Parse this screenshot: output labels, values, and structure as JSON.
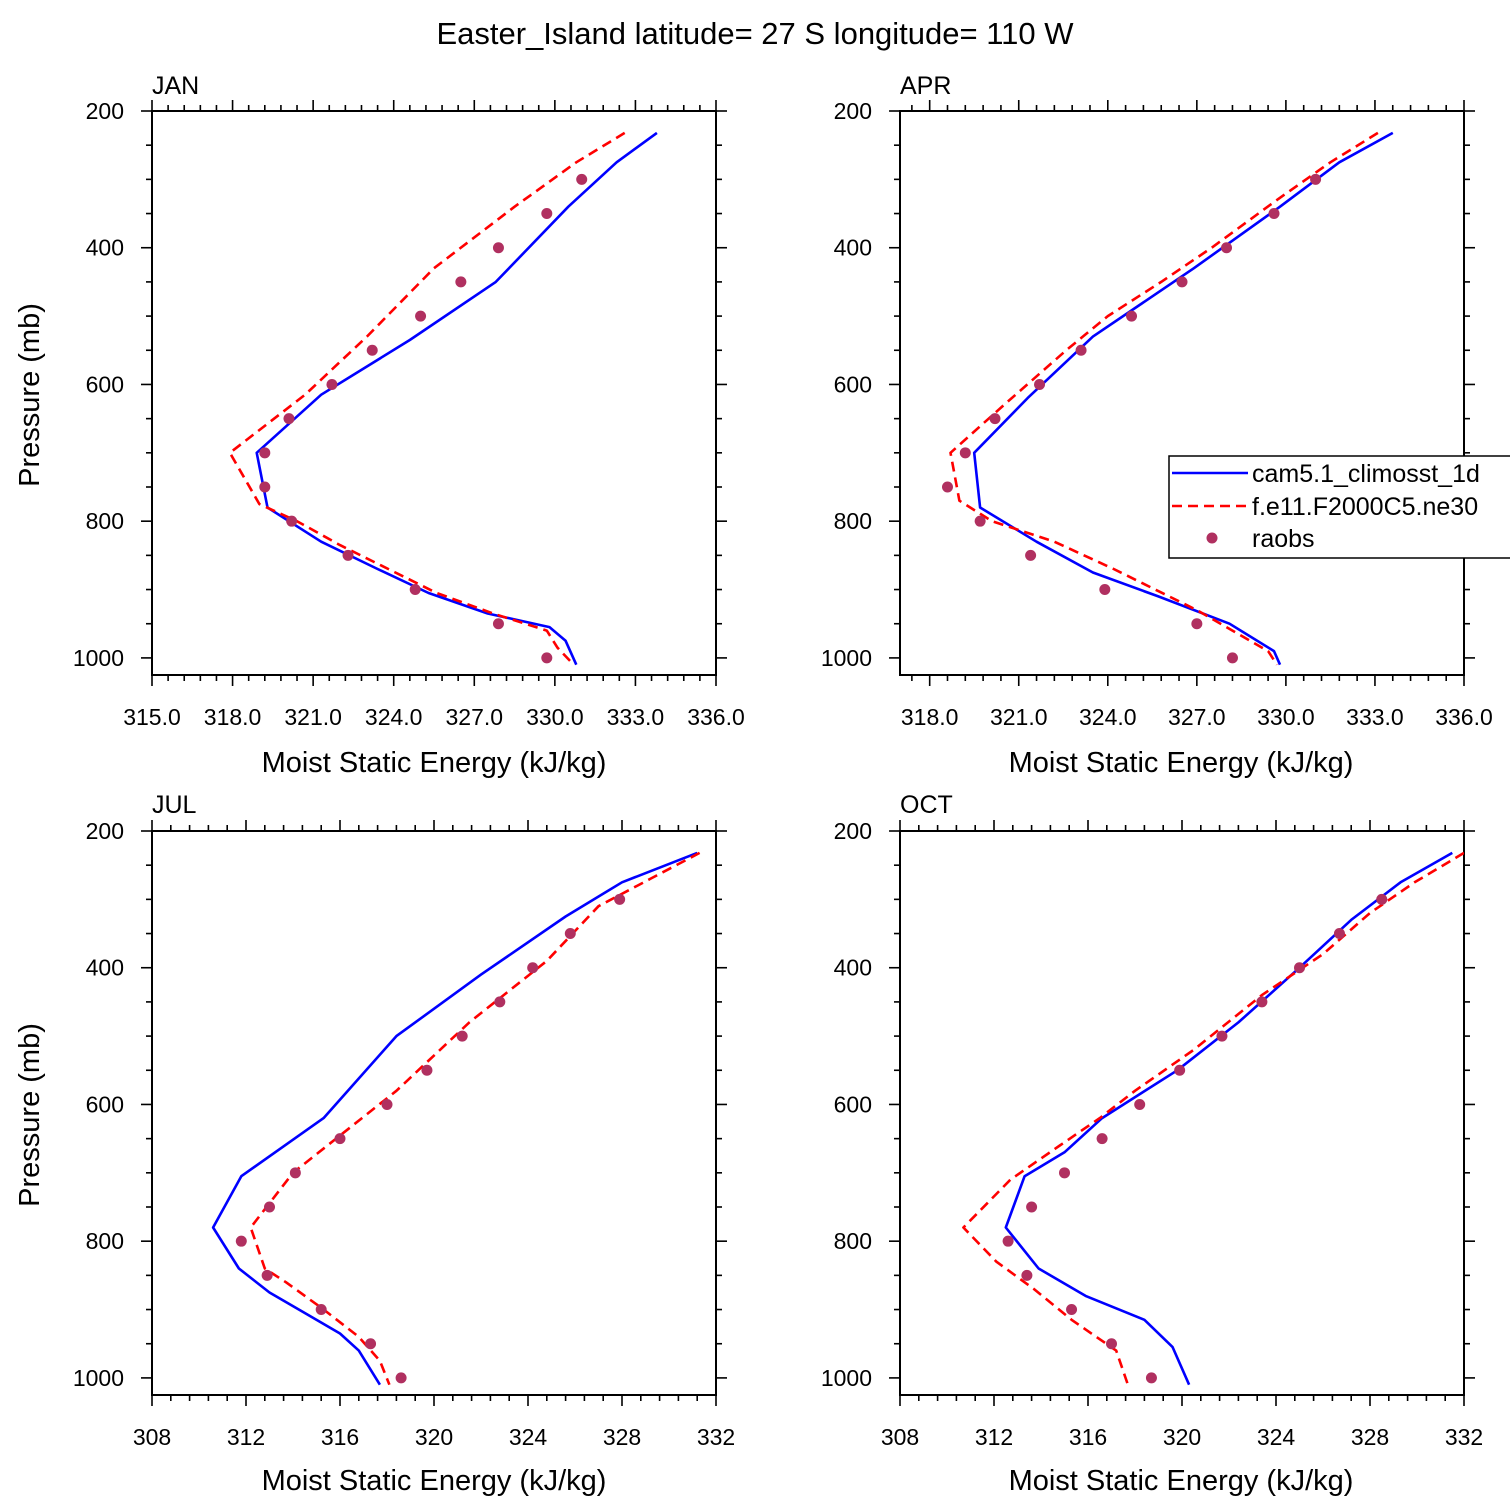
{
  "title": "Easter_Island  latitude= 27 S longitude= 110 W",
  "legend": {
    "entries": [
      "cam5.1_climosst_1d",
      "f.e11.F2000C5.ne30",
      "raobs"
    ],
    "colors": [
      "#0000ff",
      "#ff0000",
      "#b03060"
    ],
    "placement": "right, inside APR panel (clipped at figure edge)"
  },
  "chart_data": [
    {
      "type": "line",
      "panel_label": "JAN",
      "xlabel": "Moist Static Energy (kJ/kg)",
      "ylabel": "Pressure (mb)",
      "xlim": [
        315,
        336
      ],
      "ylim": [
        200,
        1025
      ],
      "y_inverted": true,
      "x_ticks": [
        315,
        318,
        321,
        324,
        327,
        330,
        333,
        336
      ],
      "x_tick_labels": [
        "315.0",
        "318.0",
        "321.0",
        "324.0",
        "327.0",
        "330.0",
        "333.0",
        "336.0"
      ],
      "y_ticks": [
        200,
        400,
        600,
        800,
        1000
      ],
      "y_tick_labels": [
        "200",
        "400",
        "600",
        "800",
        "1000"
      ],
      "series": [
        {
          "name": "cam5.1_climosst_1d",
          "style": "solid",
          "color": "#0000ff",
          "x": [
            333.8,
            332.3,
            330.5,
            327.8,
            324.6,
            321.3,
            318.9,
            319.3,
            321.3,
            323.4,
            325.3,
            327.5,
            329.8,
            330.4,
            330.8
          ],
          "y": [
            232,
            275,
            340,
            450,
            535,
            615,
            700,
            780,
            830,
            870,
            905,
            935,
            955,
            975,
            1010
          ]
        },
        {
          "name": "f.e11.F2000C5.ne30",
          "style": "dashed",
          "color": "#ff0000",
          "x": [
            332.6,
            330.8,
            328.5,
            325.5,
            323.0,
            320.7,
            317.9,
            319.0,
            320.4,
            322.0,
            323.8,
            325.6,
            327.7,
            329.7,
            330.1,
            330.7
          ],
          "y": [
            232,
            275,
            340,
            430,
            530,
            615,
            700,
            775,
            800,
            835,
            870,
            905,
            935,
            960,
            985,
            1010
          ]
        },
        {
          "name": "raobs",
          "style": "markers",
          "color": "#b03060",
          "x": [
            331.0,
            329.7,
            327.9,
            326.5,
            325.0,
            323.2,
            321.7,
            320.1,
            319.2,
            319.2,
            320.2,
            322.3,
            324.8,
            327.9,
            329.7
          ],
          "y": [
            300,
            350,
            400,
            450,
            500,
            550,
            600,
            650,
            700,
            750,
            800,
            850,
            900,
            950,
            1000
          ]
        }
      ]
    },
    {
      "type": "line",
      "panel_label": "APR",
      "xlabel": "Moist Static Energy (kJ/kg)",
      "ylabel": "",
      "xlim": [
        317,
        336
      ],
      "ylim": [
        200,
        1025
      ],
      "y_inverted": true,
      "x_ticks": [
        318,
        321,
        324,
        327,
        330,
        333,
        336
      ],
      "x_tick_labels": [
        "318.0",
        "321.0",
        "324.0",
        "327.0",
        "330.0",
        "333.0",
        "336.0"
      ],
      "y_ticks": [
        200,
        400,
        600,
        800,
        1000
      ],
      "y_tick_labels": [
        "200",
        "400",
        "600",
        "800",
        "1000"
      ],
      "series": [
        {
          "name": "cam5.1_climosst_1d",
          "style": "solid",
          "color": "#0000ff",
          "x": [
            333.6,
            331.8,
            329.8,
            326.9,
            323.5,
            321.3,
            319.5,
            319.7,
            321.6,
            323.5,
            325.7,
            328.1,
            329.6,
            329.8
          ],
          "y": [
            232,
            275,
            340,
            430,
            530,
            620,
            700,
            780,
            830,
            875,
            910,
            950,
            990,
            1010
          ]
        },
        {
          "name": "f.e11.F2000C5.ne30",
          "style": "dashed",
          "color": "#ff0000",
          "x": [
            333.1,
            331.5,
            329.7,
            327.5,
            325.8,
            324.0,
            322.6,
            320.5,
            318.7,
            319.0,
            320.1,
            322.2,
            324.2,
            327.0,
            329.4,
            329.7
          ],
          "y": [
            232,
            275,
            330,
            400,
            450,
            500,
            550,
            630,
            700,
            770,
            800,
            830,
            870,
            930,
            990,
            1010
          ]
        },
        {
          "name": "raobs",
          "style": "markers",
          "color": "#b03060",
          "x": [
            331.0,
            329.6,
            328.0,
            326.5,
            324.8,
            323.1,
            321.7,
            320.2,
            319.2,
            318.6,
            319.7,
            321.4,
            323.9,
            327.0,
            328.2
          ],
          "y": [
            300,
            350,
            400,
            450,
            500,
            550,
            600,
            650,
            700,
            750,
            800,
            850,
            900,
            950,
            1000
          ]
        }
      ]
    },
    {
      "type": "line",
      "panel_label": "JUL",
      "xlabel": "Moist Static Energy (kJ/kg)",
      "ylabel": "Pressure (mb)",
      "xlim": [
        308,
        332
      ],
      "ylim": [
        200,
        1025
      ],
      "y_inverted": true,
      "x_ticks": [
        308,
        312,
        316,
        320,
        324,
        328,
        332
      ],
      "x_tick_labels": [
        "308",
        "312",
        "316",
        "320",
        "324",
        "328",
        "332"
      ],
      "y_ticks": [
        200,
        400,
        600,
        800,
        1000
      ],
      "y_tick_labels": [
        "200",
        "400",
        "600",
        "800",
        "1000"
      ],
      "series": [
        {
          "name": "cam5.1_climosst_1d",
          "style": "solid",
          "color": "#0000ff",
          "x": [
            331.2,
            328.0,
            325.6,
            322.0,
            318.4,
            315.3,
            311.8,
            310.6,
            311.7,
            313.0,
            314.5,
            316.0,
            316.8,
            317.7
          ],
          "y": [
            232,
            275,
            325,
            410,
            500,
            620,
            705,
            780,
            840,
            875,
            905,
            935,
            960,
            1010
          ]
        },
        {
          "name": "f.e11.F2000C5.ne30",
          "style": "dashed",
          "color": "#ff0000",
          "x": [
            331.3,
            329.2,
            327.0,
            324.8,
            321.5,
            318.4,
            316.2,
            314.0,
            312.2,
            312.8,
            313.7,
            315.3,
            316.8,
            317.7,
            318.1
          ],
          "y": [
            232,
            270,
            310,
            390,
            480,
            580,
            640,
            700,
            780,
            840,
            860,
            900,
            940,
            975,
            1010
          ]
        },
        {
          "name": "raobs",
          "style": "markers",
          "color": "#b03060",
          "x": [
            327.9,
            325.8,
            324.2,
            322.8,
            321.2,
            319.7,
            318.0,
            316.0,
            314.1,
            313.0,
            311.8,
            312.9,
            315.2,
            317.3,
            318.6
          ],
          "y": [
            300,
            350,
            400,
            450,
            500,
            550,
            600,
            650,
            700,
            750,
            800,
            850,
            900,
            950,
            1000
          ]
        }
      ]
    },
    {
      "type": "line",
      "panel_label": "OCT",
      "xlabel": "Moist Static Energy (kJ/kg)",
      "ylabel": "",
      "xlim": [
        308,
        332
      ],
      "ylim": [
        200,
        1025
      ],
      "y_inverted": true,
      "x_ticks": [
        308,
        312,
        316,
        320,
        324,
        328,
        332
      ],
      "x_tick_labels": [
        "308",
        "312",
        "316",
        "320",
        "324",
        "328",
        "332"
      ],
      "y_ticks": [
        200,
        400,
        600,
        800,
        1000
      ],
      "y_tick_labels": [
        "200",
        "400",
        "600",
        "800",
        "1000"
      ],
      "series": [
        {
          "name": "cam5.1_climosst_1d",
          "style": "solid",
          "color": "#0000ff",
          "x": [
            331.5,
            329.3,
            327.2,
            325.0,
            322.4,
            319.8,
            316.6,
            315.0,
            313.3,
            312.5,
            313.9,
            315.9,
            318.4,
            319.6,
            320.3
          ],
          "y": [
            232,
            275,
            330,
            400,
            480,
            550,
            620,
            670,
            705,
            780,
            840,
            880,
            915,
            955,
            1010
          ]
        },
        {
          "name": "f.e11.F2000C5.ne30",
          "style": "dashed",
          "color": "#ff0000",
          "x": [
            332.0,
            329.9,
            328.0,
            326.0,
            323.4,
            320.5,
            318.0,
            316.5,
            314.8,
            312.7,
            310.7,
            312.1,
            313.7,
            315.3,
            317.2,
            317.7
          ],
          "y": [
            232,
            275,
            320,
            380,
            440,
            520,
            580,
            620,
            660,
            710,
            780,
            830,
            870,
            915,
            960,
            1010
          ]
        },
        {
          "name": "raobs",
          "style": "markers",
          "color": "#b03060",
          "x": [
            328.5,
            326.7,
            325.0,
            323.4,
            321.7,
            319.9,
            318.2,
            316.6,
            315.0,
            313.6,
            312.6,
            313.4,
            315.3,
            317.0,
            318.7
          ],
          "y": [
            300,
            350,
            400,
            450,
            500,
            550,
            600,
            650,
            700,
            750,
            800,
            850,
            900,
            950,
            1000
          ]
        }
      ]
    }
  ]
}
